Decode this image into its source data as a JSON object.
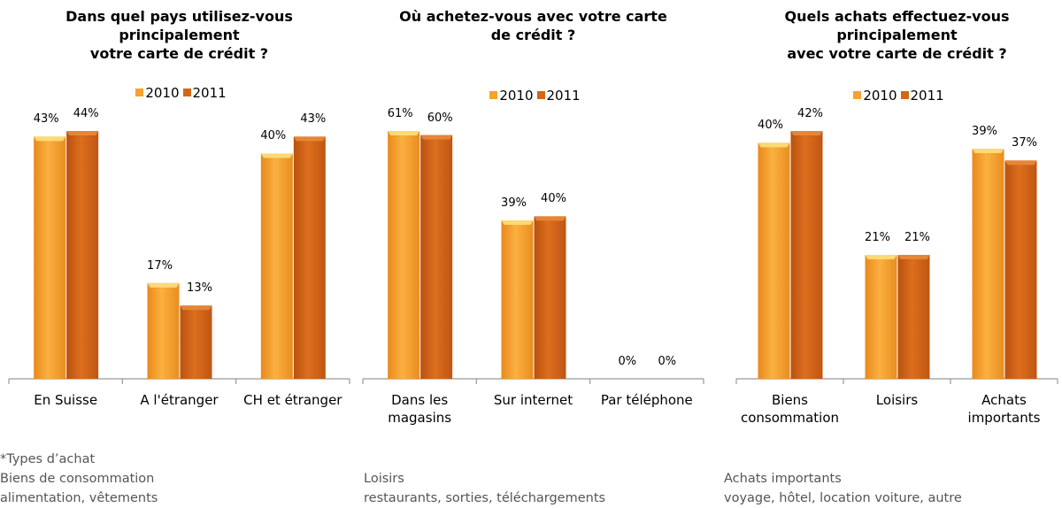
{
  "chart_data": [
    {
      "type": "bar",
      "title": "Dans quel pays utilisez-vous\nprincipalement\nvotre carte de crédit ?",
      "categories": [
        "En Suisse",
        "A l'étranger",
        "CH et étranger"
      ],
      "series": [
        {
          "name": "2010",
          "color": "#f7a12f",
          "values": [
            43,
            17,
            40
          ],
          "value_labels": [
            "43%",
            "17%",
            "40%"
          ]
        },
        {
          "name": "2011",
          "color": "#d4661a",
          "values": [
            44,
            13,
            43
          ],
          "value_labels": [
            "44%",
            "13%",
            "43%"
          ]
        }
      ],
      "legend": "top"
    },
    {
      "type": "bar",
      "title": "Où achetez-vous avec votre carte\nde crédit ?",
      "categories": [
        "Dans les\nmagasins",
        "Sur internet",
        "Par téléphone"
      ],
      "series": [
        {
          "name": "2010",
          "color": "#f7a12f",
          "values": [
            61,
            39,
            0
          ],
          "value_labels": [
            "61%",
            "39%",
            "0%"
          ]
        },
        {
          "name": "2011",
          "color": "#d4661a",
          "values": [
            60,
            40,
            0
          ],
          "value_labels": [
            "60%",
            "40%",
            "0%"
          ]
        }
      ],
      "legend": "top"
    },
    {
      "type": "bar",
      "title": "Quels achats effectuez-vous\nprincipalement\navec votre carte de crédit ?",
      "categories": [
        "Biens\nconsommation",
        "Loisirs",
        "Achats\nimportants"
      ],
      "series": [
        {
          "name": "2010",
          "color": "#f7a12f",
          "values": [
            40,
            21,
            39
          ],
          "value_labels": [
            "40%",
            "21%",
            "39%"
          ]
        },
        {
          "name": "2011",
          "color": "#d4661a",
          "values": [
            42,
            21,
            37
          ],
          "value_labels": [
            "42%",
            "21%",
            "37%"
          ]
        }
      ],
      "legend": "top"
    }
  ],
  "notes": [
    [
      "*Types d’achat",
      "Biens de consommation",
      "alimentation, vêtements"
    ],
    [
      "Loisirs",
      "restaurants, sorties, téléchargements"
    ],
    [
      "Achats importants",
      "voyage, hôtel, location voiture, autre"
    ]
  ]
}
